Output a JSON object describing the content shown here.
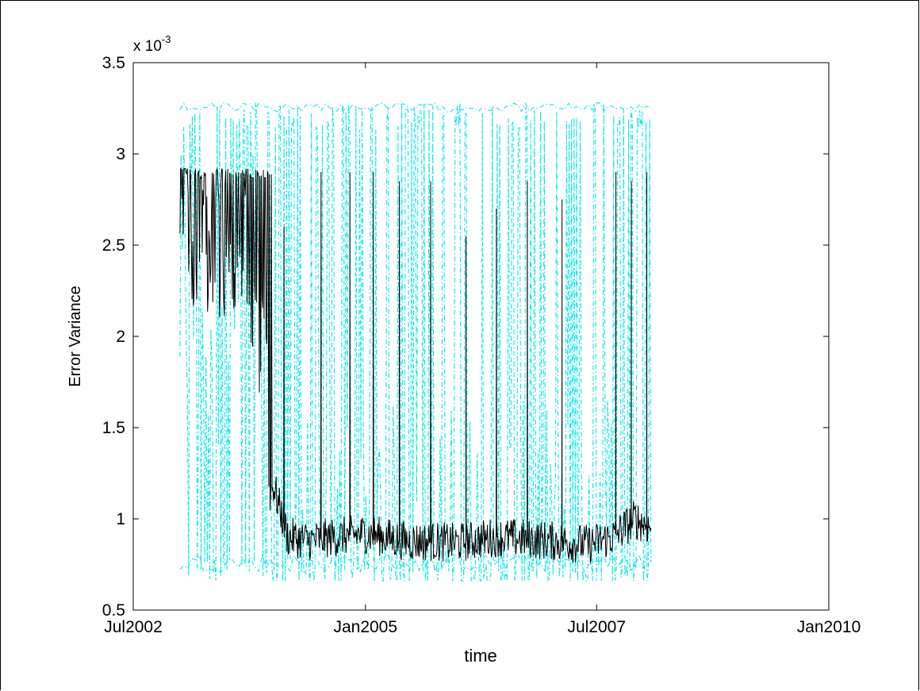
{
  "chart_data": {
    "type": "line",
    "title": "",
    "xlabel": "time",
    "ylabel": "Error Variance",
    "y_multiplier_label": "x 10",
    "y_multiplier_exponent": "-3",
    "x_ticks": [
      {
        "date": "2002-07-01",
        "label": "Jul2002"
      },
      {
        "date": "2005-01-01",
        "label": "Jan2005"
      },
      {
        "date": "2007-07-01",
        "label": "Jul2007"
      },
      {
        "date": "2010-01-01",
        "label": "Jan2010"
      }
    ],
    "y_ticks": [
      {
        "value": 0.5,
        "label": "0.5"
      },
      {
        "value": 1.0,
        "label": "1"
      },
      {
        "value": 1.5,
        "label": "1.5"
      },
      {
        "value": 2.0,
        "label": "2"
      },
      {
        "value": 2.5,
        "label": "2.5"
      },
      {
        "value": 3.0,
        "label": "3"
      },
      {
        "value": 3.5,
        "label": "3.5"
      }
    ],
    "xlim": [
      "2002-07-01",
      "2010-01-01"
    ],
    "ylim": [
      0.5,
      3.5
    ],
    "grid": false,
    "legend": "none",
    "data_start": "2003-01-01",
    "data_end": "2008-01-31",
    "series": [
      {
        "color": "#00e5e5",
        "line_style": "dash-dot",
        "role": "bounds",
        "upper_level": 3.28,
        "lower_level": 0.66,
        "segments": [
          {
            "from": "2003-01-01",
            "to": "2003-12-31",
            "min": 0.66,
            "max": 3.28,
            "mid": 2.2
          },
          {
            "from": "2004-01-01",
            "to": "2005-06-30",
            "min": 0.66,
            "max": 3.28,
            "mid": 0.85
          },
          {
            "from": "2005-07-01",
            "to": "2007-06-30",
            "min": 0.66,
            "max": 3.28,
            "mid": 0.85
          },
          {
            "from": "2007-07-01",
            "to": "2008-01-31",
            "min": 0.66,
            "max": 3.28,
            "mid": 1.1
          }
        ]
      },
      {
        "color": "#000000",
        "line_style": "solid",
        "role": "estimate",
        "points": [
          {
            "date": "2003-01-01",
            "value": 2.7
          },
          {
            "date": "2003-03-01",
            "value": 2.55
          },
          {
            "date": "2003-05-01",
            "value": 2.45
          },
          {
            "date": "2003-07-01",
            "value": 2.5
          },
          {
            "date": "2003-09-01",
            "value": 2.6
          },
          {
            "date": "2003-11-01",
            "value": 2.2
          },
          {
            "date": "2004-01-01",
            "value": 1.2
          },
          {
            "date": "2004-03-01",
            "value": 0.9
          },
          {
            "date": "2004-06-01",
            "value": 0.88
          },
          {
            "date": "2004-09-01",
            "value": 0.9
          },
          {
            "date": "2005-01-01",
            "value": 0.92
          },
          {
            "date": "2005-06-01",
            "value": 0.88
          },
          {
            "date": "2006-01-01",
            "value": 0.87
          },
          {
            "date": "2006-06-01",
            "value": 0.9
          },
          {
            "date": "2007-01-01",
            "value": 0.88
          },
          {
            "date": "2007-06-01",
            "value": 0.86
          },
          {
            "date": "2007-09-01",
            "value": 0.9
          },
          {
            "date": "2007-12-01",
            "value": 1.0
          },
          {
            "date": "2008-01-31",
            "value": 0.95
          }
        ],
        "spikes": [
          {
            "date": "2004-02-15",
            "value": 2.6
          },
          {
            "date": "2004-07-10",
            "value": 2.9
          },
          {
            "date": "2004-11-01",
            "value": 2.9
          },
          {
            "date": "2005-02-01",
            "value": 2.9
          },
          {
            "date": "2005-05-15",
            "value": 2.85
          },
          {
            "date": "2005-09-15",
            "value": 2.85
          },
          {
            "date": "2006-02-01",
            "value": 2.55
          },
          {
            "date": "2006-06-01",
            "value": 2.7
          },
          {
            "date": "2006-10-01",
            "value": 2.85
          },
          {
            "date": "2007-02-15",
            "value": 2.75
          },
          {
            "date": "2007-09-15",
            "value": 2.9
          },
          {
            "date": "2007-11-15",
            "value": 2.85
          },
          {
            "date": "2008-01-15",
            "value": 2.9
          }
        ],
        "upper_level": 2.92,
        "lower_level": 0.76
      }
    ]
  }
}
